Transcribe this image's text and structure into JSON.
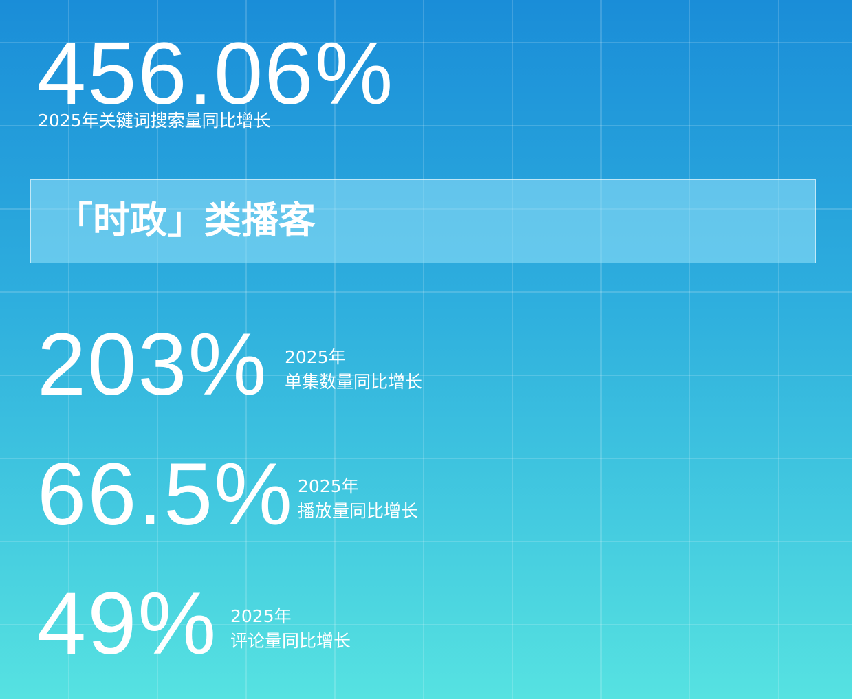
{
  "headline": {
    "value": "456.06%",
    "caption": "2025年关键词搜索量同比增长"
  },
  "banner": {
    "title": "「时政」类播客"
  },
  "stats": [
    {
      "value": "203%",
      "year": "2025年",
      "caption": "单集数量同比增长"
    },
    {
      "value": "66.5%",
      "year": "2025年",
      "caption": "播放量同比增长"
    },
    {
      "value": "49%",
      "year": "2025年",
      "caption": "评论量同比增长"
    }
  ]
}
